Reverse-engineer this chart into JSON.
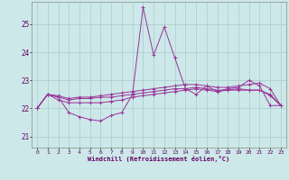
{
  "xlabel": "Windchill (Refroidissement éolien,°C)",
  "background_color": "#cce8e8",
  "grid_color": "#aacccc",
  "line_color": "#993399",
  "x_ticks": [
    0,
    1,
    2,
    3,
    4,
    5,
    6,
    7,
    8,
    9,
    10,
    11,
    12,
    13,
    14,
    15,
    16,
    17,
    18,
    19,
    20,
    21,
    22,
    23
  ],
  "y_ticks": [
    21,
    22,
    23,
    24,
    25
  ],
  "ylim": [
    20.6,
    25.8
  ],
  "xlim": [
    -0.5,
    23.5
  ],
  "series": [
    [
      22.0,
      22.5,
      22.4,
      21.85,
      21.7,
      21.6,
      21.55,
      21.75,
      21.85,
      22.5,
      25.6,
      23.9,
      24.9,
      23.8,
      22.7,
      22.5,
      22.8,
      22.6,
      22.7,
      22.75,
      23.0,
      22.8,
      22.1,
      22.1
    ],
    [
      22.0,
      22.5,
      22.45,
      22.35,
      22.4,
      22.4,
      22.45,
      22.5,
      22.55,
      22.6,
      22.65,
      22.7,
      22.75,
      22.8,
      22.85,
      22.85,
      22.8,
      22.75,
      22.75,
      22.8,
      22.85,
      22.9,
      22.7,
      22.1
    ],
    [
      22.0,
      22.5,
      22.4,
      22.3,
      22.35,
      22.35,
      22.4,
      22.4,
      22.45,
      22.5,
      22.55,
      22.6,
      22.65,
      22.7,
      22.7,
      22.75,
      22.7,
      22.65,
      22.65,
      22.7,
      22.65,
      22.65,
      22.5,
      22.1
    ],
    [
      22.0,
      22.5,
      22.3,
      22.2,
      22.2,
      22.2,
      22.2,
      22.25,
      22.3,
      22.4,
      22.45,
      22.5,
      22.55,
      22.6,
      22.65,
      22.7,
      22.65,
      22.6,
      22.65,
      22.65,
      22.65,
      22.65,
      22.45,
      22.1
    ]
  ]
}
